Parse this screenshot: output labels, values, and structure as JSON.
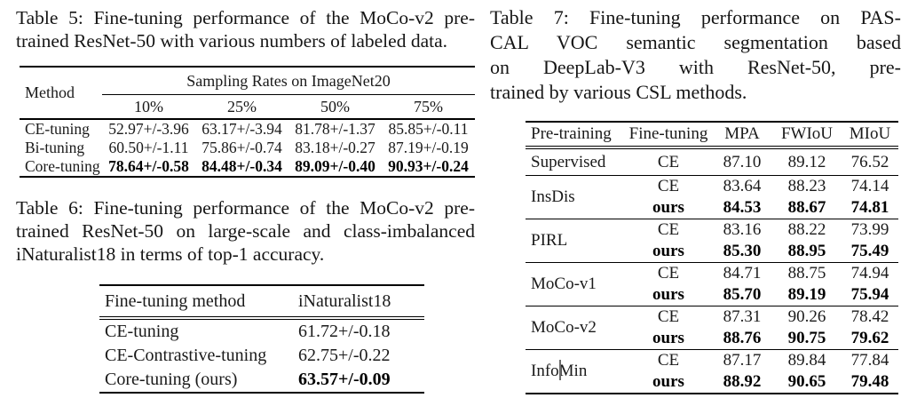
{
  "table5": {
    "caption_lines": [
      "Table 5: Fine-tuning performance of the MoCo-v2 pre-",
      "trained ResNet-50 with various numbers of labeled data."
    ],
    "header": {
      "method": "Method",
      "group_label": "Sampling Rates on ImageNet20",
      "cols": [
        "10%",
        "25%",
        "50%",
        "75%"
      ]
    },
    "rows": [
      {
        "method": "CE-tuning",
        "values": [
          "52.97+/-3.96",
          "63.17+/-3.94",
          "81.78+/-1.37",
          "85.85+/-0.11"
        ]
      },
      {
        "method": "Bi-tuning",
        "values": [
          "60.50+/-1.11",
          "75.86+/-0.74",
          "83.18+/-0.27",
          "87.19+/-0.19"
        ]
      },
      {
        "method": "Core-tuning",
        "values": [
          "78.64+/-0.58",
          "84.48+/-0.34",
          "89.09+/-0.40",
          "90.93+/-0.24"
        ],
        "bold": true
      }
    ]
  },
  "table6": {
    "caption_lines": [
      "Table 6: Fine-tuning performance of the MoCo-v2 pre-",
      "trained ResNet-50 on large-scale and class-imbalanced",
      "iNaturalist18 in terms of top-1 accuracy."
    ],
    "header": [
      "Fine-tuning method",
      "iNaturalist18"
    ],
    "rows": [
      {
        "method": "CE-tuning",
        "value": "61.72+/-0.18"
      },
      {
        "method": "CE-Contrastive-tuning",
        "value": "62.75+/-0.22"
      },
      {
        "method": "Core-tuning (ours)",
        "value": "63.57+/-0.09",
        "bold": true
      }
    ]
  },
  "table7": {
    "caption_lines": [
      "Table 7: Fine-tuning performance on PAS-",
      "CAL VOC semantic segmentation based",
      "on DeepLab-V3 with ResNet-50, pre-",
      "trained by various CSL methods."
    ],
    "header": [
      "Pre-training",
      "Fine-tuning",
      "MPA",
      "FWIoU",
      "MIoU"
    ],
    "groups": [
      {
        "name": "Supervised",
        "rows": [
          {
            "ft": "CE",
            "mpa": "87.10",
            "fwiou": "89.12",
            "miou": "76.52"
          }
        ]
      },
      {
        "name": "InsDis",
        "rows": [
          {
            "ft": "CE",
            "mpa": "83.64",
            "fwiou": "88.23",
            "miou": "74.14"
          },
          {
            "ft": "ours",
            "mpa": "84.53",
            "fwiou": "88.67",
            "miou": "74.81",
            "bold": true
          }
        ]
      },
      {
        "name": "PIRL",
        "rows": [
          {
            "ft": "CE",
            "mpa": "83.16",
            "fwiou": "88.22",
            "miou": "73.99"
          },
          {
            "ft": "ours",
            "mpa": "85.30",
            "fwiou": "88.95",
            "miou": "75.49",
            "bold": true
          }
        ]
      },
      {
        "name": "MoCo-v1",
        "rows": [
          {
            "ft": "CE",
            "mpa": "84.71",
            "fwiou": "88.75",
            "miou": "74.94"
          },
          {
            "ft": "ours",
            "mpa": "85.70",
            "fwiou": "89.19",
            "miou": "75.94",
            "bold": true
          }
        ]
      },
      {
        "name": "MoCo-v2",
        "rows": [
          {
            "ft": "CE",
            "mpa": "87.31",
            "fwiou": "90.26",
            "miou": "78.42"
          },
          {
            "ft": "ours",
            "mpa": "88.76",
            "fwiou": "90.75",
            "miou": "79.62",
            "bold": true
          }
        ]
      },
      {
        "name": "InfoMin",
        "rows": [
          {
            "ft": "CE",
            "mpa": "87.17",
            "fwiou": "89.84",
            "miou": "77.84"
          },
          {
            "ft": "ours",
            "mpa": "88.92",
            "fwiou": "90.65",
            "miou": "79.48",
            "bold": true
          }
        ]
      }
    ]
  }
}
